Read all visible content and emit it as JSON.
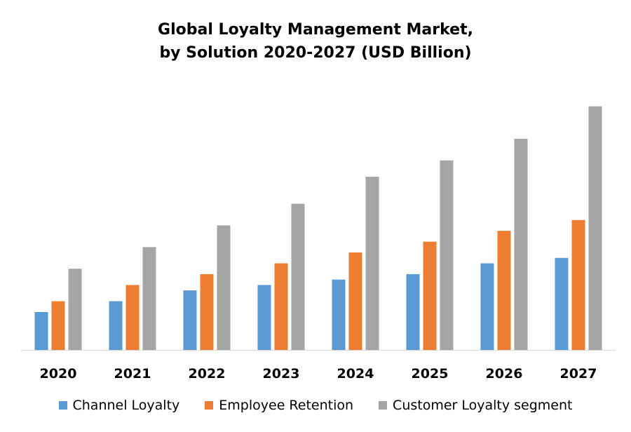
{
  "chart_data": {
    "type": "bar",
    "title_lines": [
      "Global Loyalty Management Market,",
      "by Solution 2020-2027 (USD Billion)"
    ],
    "categories": [
      "2020",
      "2021",
      "2022",
      "2023",
      "2024",
      "2025",
      "2026",
      "2027"
    ],
    "series": [
      {
        "name": "Channel Loyalty",
        "color": "#5B9BD5",
        "values": [
          1.4,
          1.8,
          2.2,
          2.4,
          2.6,
          2.8,
          3.2,
          3.4
        ]
      },
      {
        "name": "Employee Retention",
        "color": "#ED7D31",
        "values": [
          1.8,
          2.4,
          2.8,
          3.2,
          3.6,
          4.0,
          4.4,
          4.8
        ]
      },
      {
        "name": "Customer Loyalty segment",
        "color": "#A5A5A5",
        "values": [
          3.0,
          3.8,
          4.6,
          5.4,
          6.4,
          7.0,
          7.8,
          9.0
        ]
      }
    ],
    "ylim": [
      0,
      10
    ],
    "grid": false,
    "legend_position": "bottom"
  }
}
